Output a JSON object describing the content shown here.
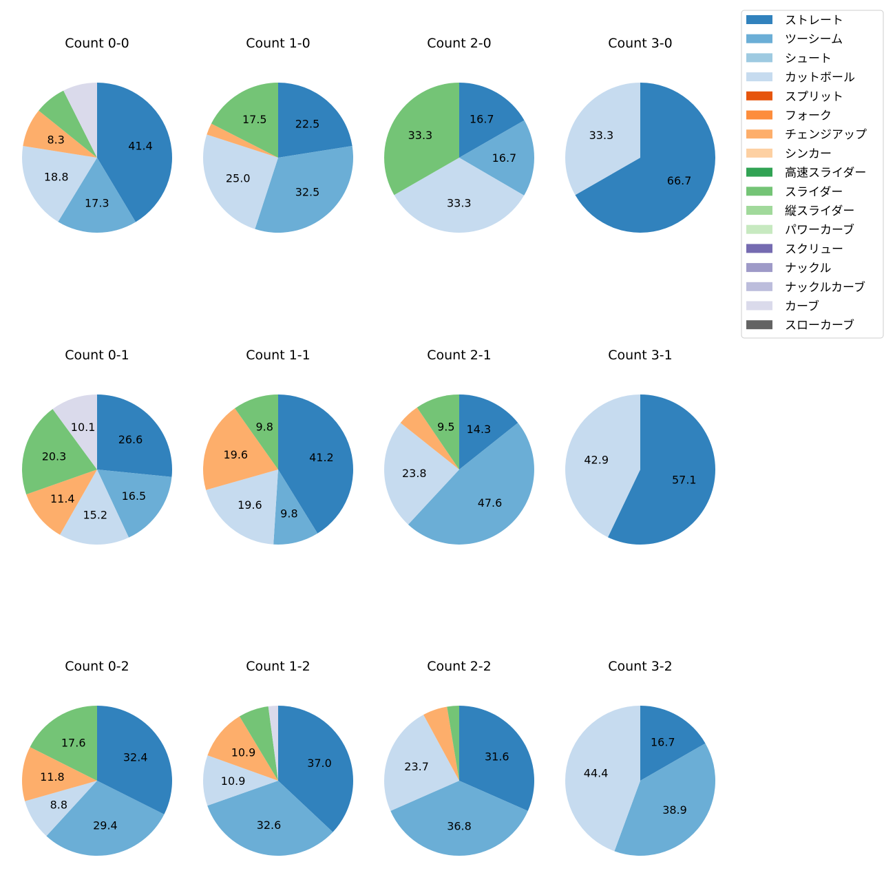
{
  "legend": {
    "entries": [
      {
        "label": "ストレート",
        "color": "#3182bd"
      },
      {
        "label": "ツーシーム",
        "color": "#6baed6"
      },
      {
        "label": "シュート",
        "color": "#9ecae1"
      },
      {
        "label": "カットボール",
        "color": "#c6dbef"
      },
      {
        "label": "スプリット",
        "color": "#e6550d"
      },
      {
        "label": "フォーク",
        "color": "#fd8d3c"
      },
      {
        "label": "チェンジアップ",
        "color": "#fdae6b"
      },
      {
        "label": "シンカー",
        "color": "#fdd0a2"
      },
      {
        "label": "高速スライダー",
        "color": "#31a354"
      },
      {
        "label": "スライダー",
        "color": "#74c476"
      },
      {
        "label": "縦スライダー",
        "color": "#a1d99b"
      },
      {
        "label": "パワーカーブ",
        "color": "#c7e9c0"
      },
      {
        "label": "スクリュー",
        "color": "#756bb1"
      },
      {
        "label": "ナックル",
        "color": "#9e9ac8"
      },
      {
        "label": "ナックルカーブ",
        "color": "#bcbddc"
      },
      {
        "label": "カーブ",
        "color": "#dadaeb"
      },
      {
        "label": "スローカーブ",
        "color": "#636363"
      }
    ]
  },
  "chart_data": [
    {
      "type": "pie",
      "title": "Count 0-0",
      "slices": [
        {
          "pitch": "ストレート",
          "value": 41.4,
          "label": "41.4"
        },
        {
          "pitch": "ツーシーム",
          "value": 17.3,
          "label": "17.3"
        },
        {
          "pitch": "カットボール",
          "value": 18.8,
          "label": "18.8"
        },
        {
          "pitch": "チェンジアップ",
          "value": 8.3,
          "label": "8.3"
        },
        {
          "pitch": "スライダー",
          "value": 6.8,
          "label": ""
        },
        {
          "pitch": "カーブ",
          "value": 7.4,
          "label": ""
        }
      ]
    },
    {
      "type": "pie",
      "title": "Count 1-0",
      "slices": [
        {
          "pitch": "ストレート",
          "value": 22.5,
          "label": "22.5"
        },
        {
          "pitch": "ツーシーム",
          "value": 32.5,
          "label": "32.5"
        },
        {
          "pitch": "カットボール",
          "value": 25.0,
          "label": "25.0"
        },
        {
          "pitch": "チェンジアップ",
          "value": 2.5,
          "label": ""
        },
        {
          "pitch": "スライダー",
          "value": 17.5,
          "label": "17.5"
        }
      ]
    },
    {
      "type": "pie",
      "title": "Count 2-0",
      "slices": [
        {
          "pitch": "ストレート",
          "value": 16.7,
          "label": "16.7"
        },
        {
          "pitch": "ツーシーム",
          "value": 16.7,
          "label": "16.7"
        },
        {
          "pitch": "カットボール",
          "value": 33.3,
          "label": "33.3"
        },
        {
          "pitch": "スライダー",
          "value": 33.3,
          "label": "33.3"
        }
      ]
    },
    {
      "type": "pie",
      "title": "Count 3-0",
      "slices": [
        {
          "pitch": "ストレート",
          "value": 66.7,
          "label": "66.7"
        },
        {
          "pitch": "カットボール",
          "value": 33.3,
          "label": "33.3"
        }
      ]
    },
    {
      "type": "pie",
      "title": "Count 0-1",
      "slices": [
        {
          "pitch": "ストレート",
          "value": 26.6,
          "label": "26.6"
        },
        {
          "pitch": "ツーシーム",
          "value": 16.5,
          "label": "16.5"
        },
        {
          "pitch": "カットボール",
          "value": 15.2,
          "label": "15.2"
        },
        {
          "pitch": "チェンジアップ",
          "value": 11.4,
          "label": "11.4"
        },
        {
          "pitch": "スライダー",
          "value": 20.3,
          "label": "20.3"
        },
        {
          "pitch": "カーブ",
          "value": 10.1,
          "label": "10.1"
        }
      ]
    },
    {
      "type": "pie",
      "title": "Count 1-1",
      "slices": [
        {
          "pitch": "ストレート",
          "value": 41.2,
          "label": "41.2"
        },
        {
          "pitch": "ツーシーム",
          "value": 9.8,
          "label": "9.8"
        },
        {
          "pitch": "カットボール",
          "value": 19.6,
          "label": "19.6"
        },
        {
          "pitch": "チェンジアップ",
          "value": 19.6,
          "label": "19.6"
        },
        {
          "pitch": "スライダー",
          "value": 9.8,
          "label": "9.8"
        }
      ]
    },
    {
      "type": "pie",
      "title": "Count 2-1",
      "slices": [
        {
          "pitch": "ストレート",
          "value": 14.3,
          "label": "14.3"
        },
        {
          "pitch": "ツーシーム",
          "value": 47.6,
          "label": "47.6"
        },
        {
          "pitch": "カットボール",
          "value": 23.8,
          "label": "23.8"
        },
        {
          "pitch": "チェンジアップ",
          "value": 4.8,
          "label": ""
        },
        {
          "pitch": "スライダー",
          "value": 9.5,
          "label": "9.5"
        }
      ]
    },
    {
      "type": "pie",
      "title": "Count 3-1",
      "slices": [
        {
          "pitch": "ストレート",
          "value": 57.1,
          "label": "57.1"
        },
        {
          "pitch": "カットボール",
          "value": 42.9,
          "label": "42.9"
        }
      ]
    },
    {
      "type": "pie",
      "title": "Count 0-2",
      "slices": [
        {
          "pitch": "ストレート",
          "value": 32.4,
          "label": "32.4"
        },
        {
          "pitch": "ツーシーム",
          "value": 29.4,
          "label": "29.4"
        },
        {
          "pitch": "カットボール",
          "value": 8.8,
          "label": "8.8"
        },
        {
          "pitch": "チェンジアップ",
          "value": 11.8,
          "label": "11.8"
        },
        {
          "pitch": "スライダー",
          "value": 17.6,
          "label": "17.6"
        }
      ]
    },
    {
      "type": "pie",
      "title": "Count 1-2",
      "slices": [
        {
          "pitch": "ストレート",
          "value": 37.0,
          "label": "37.0"
        },
        {
          "pitch": "ツーシーム",
          "value": 32.6,
          "label": "32.6"
        },
        {
          "pitch": "カットボール",
          "value": 10.9,
          "label": "10.9"
        },
        {
          "pitch": "チェンジアップ",
          "value": 10.9,
          "label": "10.9"
        },
        {
          "pitch": "スライダー",
          "value": 6.5,
          "label": ""
        },
        {
          "pitch": "カーブ",
          "value": 2.1,
          "label": ""
        }
      ]
    },
    {
      "type": "pie",
      "title": "Count 2-2",
      "slices": [
        {
          "pitch": "ストレート",
          "value": 31.6,
          "label": "31.6"
        },
        {
          "pitch": "ツーシーム",
          "value": 36.8,
          "label": "36.8"
        },
        {
          "pitch": "カットボール",
          "value": 23.7,
          "label": "23.7"
        },
        {
          "pitch": "チェンジアップ",
          "value": 5.3,
          "label": ""
        },
        {
          "pitch": "スライダー",
          "value": 2.6,
          "label": ""
        }
      ]
    },
    {
      "type": "pie",
      "title": "Count 3-2",
      "slices": [
        {
          "pitch": "ストレート",
          "value": 16.7,
          "label": "16.7"
        },
        {
          "pitch": "ツーシーム",
          "value": 38.9,
          "label": "38.9"
        },
        {
          "pitch": "カットボール",
          "value": 44.4,
          "label": "44.4"
        }
      ]
    }
  ]
}
